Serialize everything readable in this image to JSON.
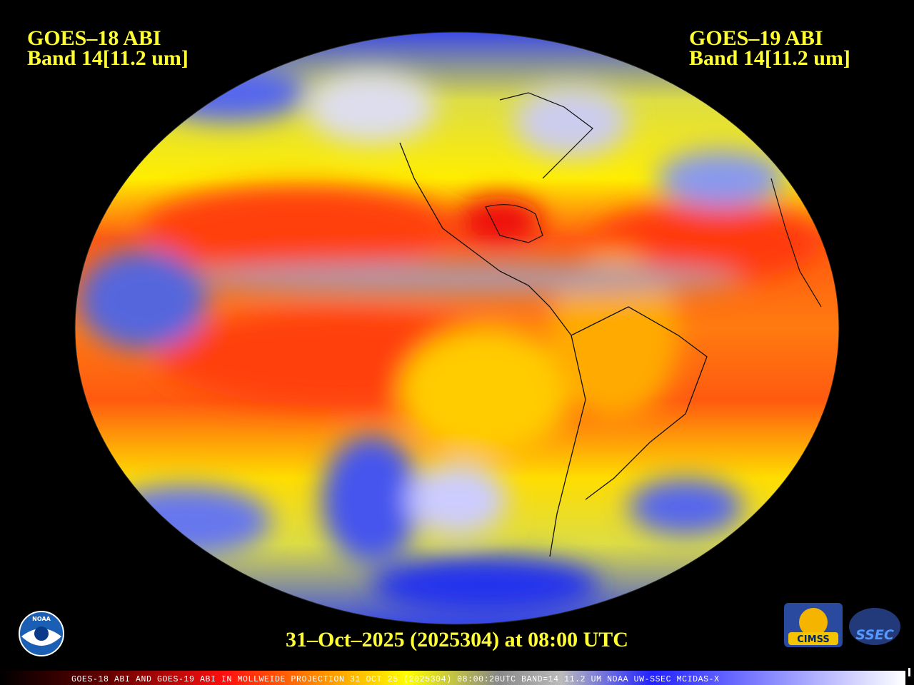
{
  "map": {
    "left_label": {
      "line1": "GOES–18 ABI",
      "line2": "Band 14[11.2 um]"
    },
    "right_label": {
      "line1": "GOES–19 ABI",
      "line2": "Band 14[11.2 um]"
    },
    "date_line": "31–Oct–2025 (2025304) at 08:00 UTC",
    "strip_text": "GOES-18 ABI AND GOES-19 ABI IN MOLLWEIDE PROJECTION 31 OCT 25 (2025304) 08:00:20UTC BAND=14 11.2 UM NOAA UW-SSEC MCIDAS-X",
    "logos": {
      "noaa": "NOAA",
      "cimss": "CIMSS",
      "ssec": "SSEC"
    }
  }
}
